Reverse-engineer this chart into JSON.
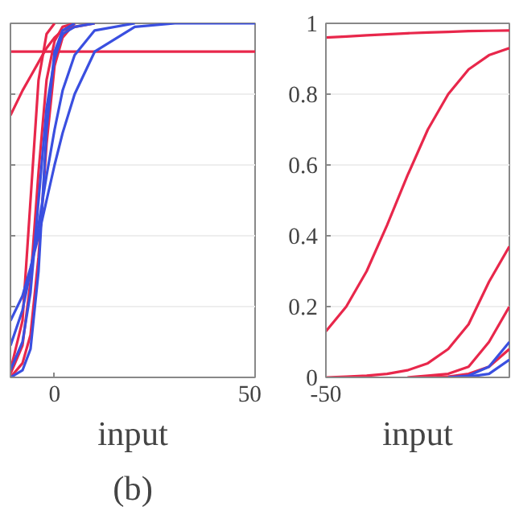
{
  "chart_data": [
    {
      "type": "line",
      "xlabel": "input",
      "annotations": [
        "(b)"
      ],
      "x": [
        -11,
        -8,
        -6,
        -4,
        -2,
        0,
        2,
        5,
        10,
        20,
        30,
        50
      ],
      "xlim": [
        -11,
        50
      ],
      "xticks": [
        0,
        50
      ],
      "ylim": [
        0,
        1
      ],
      "yticks": [
        0,
        0.2,
        0.4,
        0.6,
        0.8,
        1
      ],
      "tick_labels": "x",
      "grid": "y",
      "series": [
        {
          "color": "#e8274b",
          "values": [
            0.92,
            0.92,
            0.92,
            0.92,
            0.92,
            0.92,
            0.92,
            0.92,
            0.92,
            0.92,
            0.92,
            0.92
          ]
        },
        {
          "color": "#e8274b",
          "values": [
            0.74,
            0.81,
            0.85,
            0.89,
            0.93,
            0.96,
            0.98,
            0.99,
            1,
            null,
            null,
            null
          ]
        },
        {
          "color": "#e8274b",
          "values": [
            0.02,
            0.16,
            0.5,
            0.84,
            0.97,
            1,
            null,
            null,
            null,
            null,
            null,
            null
          ]
        },
        {
          "color": "#e8274b",
          "values": [
            0.01,
            0.09,
            0.27,
            0.58,
            0.84,
            0.95,
            0.99,
            1,
            null,
            null,
            null,
            null
          ]
        },
        {
          "color": "#e8274b",
          "values": [
            0,
            0.04,
            0.12,
            0.34,
            0.66,
            0.88,
            0.96,
            1,
            null,
            null,
            null,
            null
          ]
        },
        {
          "color": "#3a4fe0",
          "values": [
            0,
            0.02,
            0.08,
            0.3,
            0.7,
            0.92,
            0.98,
            1,
            null,
            null,
            null,
            null
          ]
        },
        {
          "color": "#3a4fe0",
          "values": [
            0.02,
            0.1,
            0.24,
            0.5,
            0.76,
            0.9,
            0.97,
            0.99,
            1,
            null,
            null,
            null
          ]
        },
        {
          "color": "#3a4fe0",
          "values": [
            0.09,
            0.19,
            0.3,
            0.43,
            0.57,
            0.7,
            0.81,
            0.91,
            0.98,
            1,
            null,
            null
          ]
        },
        {
          "color": "#3a4fe0",
          "values": [
            0.16,
            0.23,
            0.31,
            0.4,
            0.5,
            0.6,
            0.69,
            0.8,
            0.92,
            0.99,
            1,
            1
          ]
        }
      ]
    },
    {
      "type": "line",
      "xlabel": "input",
      "categories": [
        "-50",
        null,
        null,
        null,
        null,
        null,
        null,
        null,
        null,
        null
      ],
      "ylim": [
        0,
        1
      ],
      "yticks": [
        0,
        0.2,
        0.4,
        0.6,
        0.8,
        1
      ],
      "grid": "y",
      "series": [
        {
          "color": "#e8274b",
          "values": [
            0.96,
            0.963,
            0.966,
            0.969,
            0.972,
            0.974,
            0.976,
            0.978,
            0.979,
            0.98
          ]
        },
        {
          "color": "#e8274b",
          "values": [
            0.13,
            0.2,
            0.3,
            0.43,
            0.57,
            0.7,
            0.8,
            0.87,
            0.91,
            0.93
          ]
        },
        {
          "color": "#e8274b",
          "values": [
            0,
            0.002,
            0.005,
            0.01,
            0.02,
            0.04,
            0.08,
            0.15,
            0.27,
            0.37
          ]
        },
        {
          "color": "#e8274b",
          "values": [
            null,
            null,
            null,
            null,
            0,
            0.005,
            0.01,
            0.03,
            0.1,
            0.2
          ]
        },
        {
          "color": "#e8274b",
          "values": [
            null,
            null,
            null,
            null,
            null,
            0,
            0.002,
            0.01,
            0.03,
            0.08
          ]
        },
        {
          "color": "#3a4fe0",
          "values": [
            null,
            null,
            null,
            null,
            null,
            null,
            0,
            0.005,
            0.03,
            0.1
          ]
        },
        {
          "color": "#3a4fe0",
          "values": [
            null,
            null,
            null,
            null,
            null,
            null,
            0,
            0.002,
            0.01,
            0.05
          ]
        }
      ]
    }
  ]
}
